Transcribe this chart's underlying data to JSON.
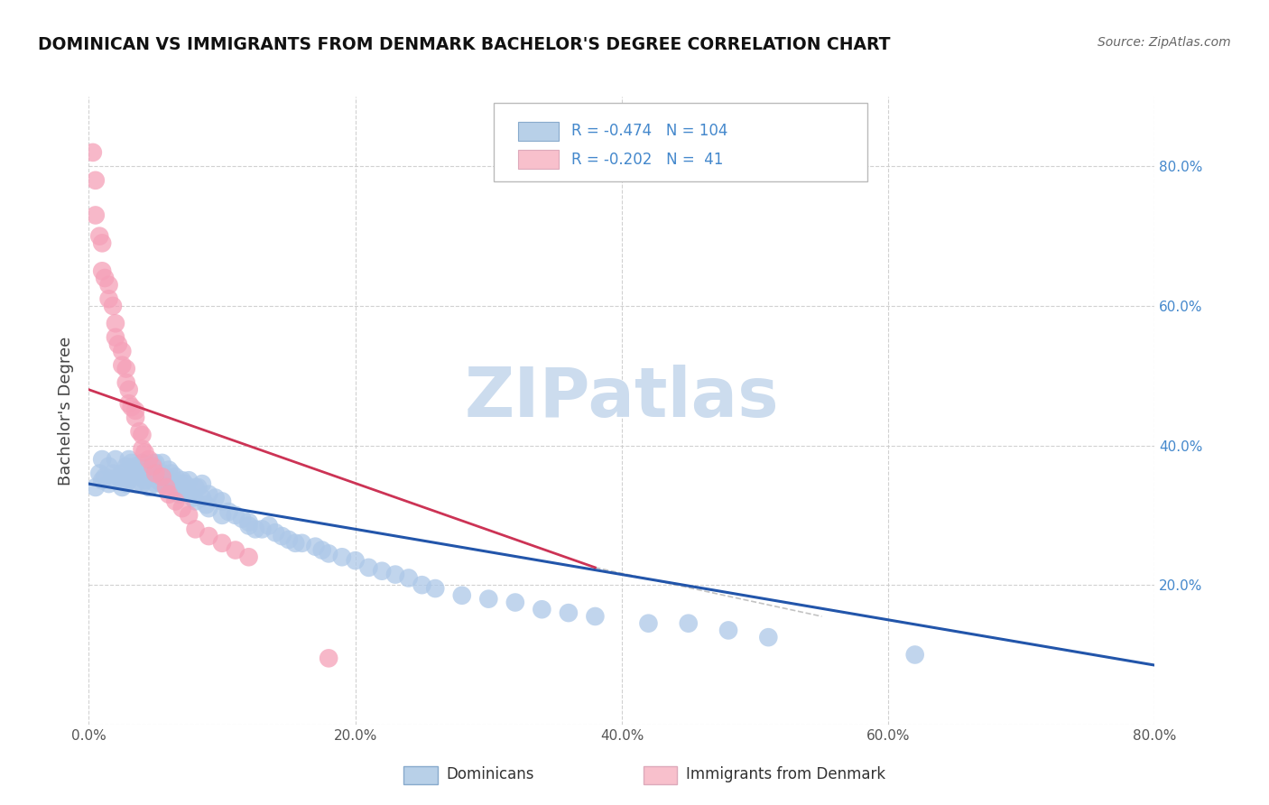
{
  "title": "DOMINICAN VS IMMIGRANTS FROM DENMARK BACHELOR'S DEGREE CORRELATION CHART",
  "source": "Source: ZipAtlas.com",
  "ylabel": "Bachelor's Degree",
  "xlim": [
    0.0,
    0.8
  ],
  "ylim": [
    0.0,
    0.9
  ],
  "xticks": [
    0.0,
    0.2,
    0.4,
    0.6,
    0.8
  ],
  "yticks": [
    0.0,
    0.2,
    0.4,
    0.6,
    0.8
  ],
  "xticklabels": [
    "0.0%",
    "20.0%",
    "40.0%",
    "60.0%",
    "80.0%"
  ],
  "yticklabels_right": [
    "",
    "20.0%",
    "40.0%",
    "60.0%",
    "80.0%"
  ],
  "blue_R": "-0.474",
  "blue_N": "104",
  "pink_R": "-0.202",
  "pink_N": "41",
  "blue_dot_color": "#adc8e8",
  "pink_dot_color": "#f5a0b8",
  "blue_line_color": "#2255aa",
  "pink_line_color": "#cc3355",
  "pink_line_dash": [
    6,
    4
  ],
  "watermark_color": "#ccdcee",
  "grid_color": "#cccccc",
  "tick_color": "#4488cc",
  "legend_blue_fill": "#b8d0e8",
  "legend_pink_fill": "#f8c0cc",
  "blue_scatter_x": [
    0.005,
    0.008,
    0.01,
    0.01,
    0.012,
    0.015,
    0.015,
    0.018,
    0.02,
    0.02,
    0.022,
    0.025,
    0.025,
    0.028,
    0.028,
    0.03,
    0.03,
    0.03,
    0.032,
    0.032,
    0.033,
    0.035,
    0.035,
    0.038,
    0.038,
    0.04,
    0.04,
    0.04,
    0.042,
    0.042,
    0.045,
    0.045,
    0.045,
    0.048,
    0.048,
    0.05,
    0.05,
    0.05,
    0.052,
    0.055,
    0.055,
    0.055,
    0.058,
    0.058,
    0.06,
    0.06,
    0.062,
    0.062,
    0.065,
    0.065,
    0.068,
    0.068,
    0.07,
    0.07,
    0.072,
    0.075,
    0.075,
    0.078,
    0.08,
    0.08,
    0.082,
    0.085,
    0.085,
    0.088,
    0.09,
    0.09,
    0.095,
    0.1,
    0.1,
    0.105,
    0.11,
    0.115,
    0.12,
    0.12,
    0.125,
    0.13,
    0.135,
    0.14,
    0.145,
    0.15,
    0.155,
    0.16,
    0.17,
    0.175,
    0.18,
    0.19,
    0.2,
    0.21,
    0.22,
    0.23,
    0.24,
    0.25,
    0.26,
    0.28,
    0.3,
    0.32,
    0.34,
    0.36,
    0.38,
    0.42,
    0.45,
    0.48,
    0.51,
    0.62
  ],
  "blue_scatter_y": [
    0.34,
    0.36,
    0.35,
    0.38,
    0.355,
    0.345,
    0.37,
    0.36,
    0.35,
    0.38,
    0.355,
    0.36,
    0.34,
    0.37,
    0.345,
    0.365,
    0.35,
    0.38,
    0.355,
    0.375,
    0.36,
    0.37,
    0.345,
    0.355,
    0.365,
    0.375,
    0.36,
    0.345,
    0.365,
    0.35,
    0.37,
    0.355,
    0.34,
    0.36,
    0.375,
    0.345,
    0.36,
    0.375,
    0.35,
    0.345,
    0.36,
    0.375,
    0.34,
    0.355,
    0.365,
    0.35,
    0.345,
    0.36,
    0.34,
    0.355,
    0.33,
    0.345,
    0.35,
    0.335,
    0.345,
    0.33,
    0.35,
    0.325,
    0.34,
    0.32,
    0.34,
    0.325,
    0.345,
    0.315,
    0.33,
    0.31,
    0.325,
    0.3,
    0.32,
    0.305,
    0.3,
    0.295,
    0.285,
    0.29,
    0.28,
    0.28,
    0.285,
    0.275,
    0.27,
    0.265,
    0.26,
    0.26,
    0.255,
    0.25,
    0.245,
    0.24,
    0.235,
    0.225,
    0.22,
    0.215,
    0.21,
    0.2,
    0.195,
    0.185,
    0.18,
    0.175,
    0.165,
    0.16,
    0.155,
    0.145,
    0.145,
    0.135,
    0.125,
    0.1
  ],
  "pink_scatter_x": [
    0.003,
    0.005,
    0.005,
    0.008,
    0.01,
    0.01,
    0.012,
    0.015,
    0.015,
    0.018,
    0.02,
    0.02,
    0.022,
    0.025,
    0.025,
    0.028,
    0.028,
    0.03,
    0.03,
    0.032,
    0.035,
    0.035,
    0.038,
    0.04,
    0.04,
    0.042,
    0.045,
    0.048,
    0.05,
    0.055,
    0.058,
    0.06,
    0.065,
    0.07,
    0.075,
    0.08,
    0.09,
    0.1,
    0.11,
    0.12,
    0.18
  ],
  "pink_scatter_y": [
    0.82,
    0.78,
    0.73,
    0.7,
    0.69,
    0.65,
    0.64,
    0.63,
    0.61,
    0.6,
    0.575,
    0.555,
    0.545,
    0.535,
    0.515,
    0.51,
    0.49,
    0.48,
    0.46,
    0.455,
    0.45,
    0.44,
    0.42,
    0.415,
    0.395,
    0.39,
    0.38,
    0.37,
    0.36,
    0.355,
    0.34,
    0.33,
    0.32,
    0.31,
    0.3,
    0.28,
    0.27,
    0.26,
    0.25,
    0.24,
    0.095
  ],
  "blue_line_x": [
    0.0,
    0.8
  ],
  "blue_line_y": [
    0.345,
    0.085
  ],
  "pink_line_x": [
    0.0,
    0.38
  ],
  "pink_line_y": [
    0.48,
    0.225
  ]
}
